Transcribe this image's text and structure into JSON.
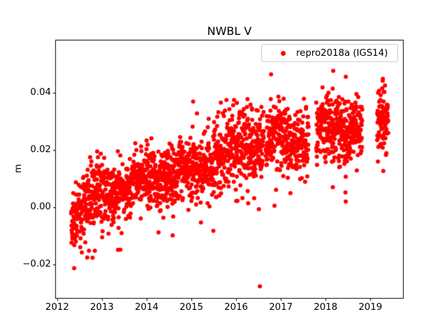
{
  "figure": {
    "background": "#ffffff",
    "accent_color": "#ff0000"
  },
  "chart_data": {
    "type": "scatter",
    "title": "NWBL V",
    "xlabel": "",
    "ylabel": "m",
    "grid": false,
    "xlim": [
      2011.97,
      2019.73
    ],
    "ylim": [
      -0.0317,
      0.0583
    ],
    "x_ticks": [
      2012,
      2013,
      2014,
      2015,
      2016,
      2017,
      2018,
      2019
    ],
    "x_tick_labels": [
      "2012",
      "2013",
      "2014",
      "2015",
      "2016",
      "2017",
      "2018",
      "2019"
    ],
    "y_ticks": [
      -0.02,
      0.0,
      0.02,
      0.04
    ],
    "y_tick_labels": [
      "−0.02",
      "0.00",
      "0.02",
      "0.04"
    ],
    "legend": {
      "position": "upper right",
      "entries": [
        {
          "label": "repro2018a (IGS14)",
          "marker": "dot",
          "color": "#ff0000"
        }
      ]
    },
    "series": [
      {
        "name": "repro2018a (IGS14)",
        "color": "#ff0000",
        "marker": "circle",
        "marker_diameter_px": 6,
        "description": "Daily GPS vertical position residuals (m) for station NWBL, rising from about 0.00 m in mid-2012 to about 0.03 m in 2019",
        "trend_m_per_year": 0.0045,
        "seasonal_amplitude_m": 0.0018,
        "seasonal_phase": 0.65,
        "seed": 42,
        "segments": [
          {
            "x_start": 2012.31,
            "x_end": 2013.02,
            "mean_start": -0.002,
            "mean_end": 0.005,
            "std": 0.0055,
            "n": 215,
            "down_tail_p": 0.1,
            "up_tail_p": 0.01
          },
          {
            "x_start": 2013.02,
            "x_end": 2014.0,
            "mean_start": 0.005,
            "mean_end": 0.0095,
            "std": 0.0047,
            "n": 330,
            "down_tail_p": 0.05,
            "up_tail_p": 0.02
          },
          {
            "x_start": 2014.0,
            "x_end": 2015.0,
            "mean_start": 0.0095,
            "mean_end": 0.013,
            "std": 0.0047,
            "n": 330,
            "down_tail_p": 0.05,
            "up_tail_p": 0.02
          },
          {
            "x_start": 2015.0,
            "x_end": 2016.0,
            "mean_start": 0.014,
            "mean_end": 0.0205,
            "std": 0.0055,
            "n": 330,
            "down_tail_p": 0.05,
            "up_tail_p": 0.03
          },
          {
            "x_start": 2016.0,
            "x_end": 2016.62,
            "mean_start": 0.0215,
            "mean_end": 0.0228,
            "std": 0.0055,
            "n": 200,
            "down_tail_p": 0.05,
            "up_tail_p": 0.03
          },
          {
            "x_start": 2016.66,
            "x_end": 2017.62,
            "mean_start": 0.023,
            "mean_end": 0.0248,
            "std": 0.0055,
            "n": 305,
            "down_tail_p": 0.05,
            "up_tail_p": 0.03
          },
          {
            "x_start": 2017.79,
            "x_end": 2018.82,
            "mean_start": 0.0262,
            "mean_end": 0.0292,
            "std": 0.0052,
            "n": 350,
            "down_tail_p": 0.04,
            "up_tail_p": 0.03
          },
          {
            "x_start": 2019.15,
            "x_end": 2019.4,
            "mean_start": 0.03,
            "mean_end": 0.032,
            "std": 0.0048,
            "n": 85,
            "down_tail_p": 0.04,
            "up_tail_p": 0.03
          }
        ],
        "data_gaps_years": [
          [
            2016.62,
            2016.66
          ],
          [
            2017.62,
            2017.79
          ],
          [
            2018.82,
            2019.15
          ]
        ],
        "notable_points": [
          [
            2016.53,
            -0.0276
          ],
          [
            2013.36,
            -0.0149
          ],
          [
            2013.41,
            -0.0148
          ],
          [
            2014.58,
            -0.0098
          ],
          [
            2012.55,
            -0.0158
          ],
          [
            2012.84,
            -0.0152
          ],
          [
            2018.45,
            0.0107
          ],
          [
            2018.45,
            0.002
          ],
          [
            2019.29,
            0.0127
          ],
          [
            2018.17,
            0.0477
          ],
          [
            2019.28,
            0.0449
          ]
        ]
      }
    ]
  }
}
